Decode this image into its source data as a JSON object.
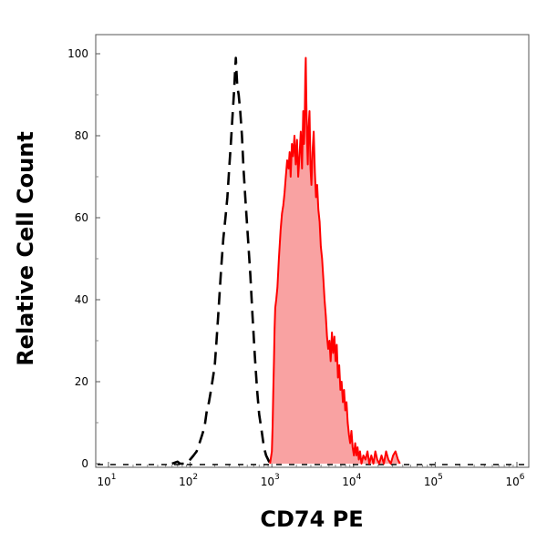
{
  "chart_data": {
    "type": "area",
    "title": "",
    "xlabel": "CD74 PE",
    "ylabel": "Relative Cell Count",
    "x_scale": "log",
    "xlim": [
      10,
      1000000
    ],
    "ylim": [
      0,
      100
    ],
    "x_ticks": [
      {
        "base": "10",
        "exp": "1"
      },
      {
        "base": "10",
        "exp": "2"
      },
      {
        "base": "10",
        "exp": "3"
      },
      {
        "base": "10",
        "exp": "4"
      },
      {
        "base": "10",
        "exp": "5"
      },
      {
        "base": "10",
        "exp": "6"
      }
    ],
    "y_ticks": [
      "0",
      "20",
      "40",
      "60",
      "80",
      "100"
    ],
    "grid": false,
    "legend": "none",
    "series": [
      {
        "style": "dashed",
        "color": "#000000",
        "filled": false,
        "points": [
          [
            60,
            0
          ],
          [
            70,
            0.5
          ],
          [
            75,
            0
          ],
          [
            90,
            0
          ],
          [
            100,
            1
          ],
          [
            110,
            2
          ],
          [
            120,
            3
          ],
          [
            130,
            5
          ],
          [
            140,
            7
          ],
          [
            150,
            9
          ],
          [
            160,
            13
          ],
          [
            170,
            15
          ],
          [
            180,
            18
          ],
          [
            190,
            21
          ],
          [
            200,
            24
          ],
          [
            210,
            30
          ],
          [
            220,
            36
          ],
          [
            230,
            42
          ],
          [
            240,
            48
          ],
          [
            255,
            55
          ],
          [
            270,
            60
          ],
          [
            285,
            65
          ],
          [
            300,
            72
          ],
          [
            315,
            78
          ],
          [
            330,
            85
          ],
          [
            345,
            91
          ],
          [
            355,
            96
          ],
          [
            362,
            99
          ],
          [
            368,
            96
          ],
          [
            378,
            92
          ],
          [
            392,
            90
          ],
          [
            410,
            86
          ],
          [
            430,
            80
          ],
          [
            450,
            72
          ],
          [
            480,
            63
          ],
          [
            510,
            55
          ],
          [
            545,
            46
          ],
          [
            580,
            36
          ],
          [
            620,
            26
          ],
          [
            660,
            18
          ],
          [
            700,
            12
          ],
          [
            750,
            8
          ],
          [
            800,
            4
          ],
          [
            850,
            2
          ],
          [
            900,
            1
          ],
          [
            950,
            0
          ]
        ]
      },
      {
        "style": "solid",
        "color": "#ff0000",
        "fill": "#f9a2a2",
        "filled": true,
        "points": [
          [
            950,
            0
          ],
          [
            1000,
            3
          ],
          [
            1020,
            9
          ],
          [
            1040,
            17
          ],
          [
            1060,
            25
          ],
          [
            1080,
            33
          ],
          [
            1100,
            38
          ],
          [
            1130,
            40
          ],
          [
            1170,
            43
          ],
          [
            1220,
            50
          ],
          [
            1280,
            57
          ],
          [
            1330,
            61
          ],
          [
            1380,
            63
          ],
          [
            1430,
            66
          ],
          [
            1480,
            70
          ],
          [
            1540,
            74
          ],
          [
            1600,
            72
          ],
          [
            1650,
            76
          ],
          [
            1700,
            70
          ],
          [
            1760,
            78
          ],
          [
            1820,
            75
          ],
          [
            1890,
            80
          ],
          [
            1960,
            73
          ],
          [
            2030,
            79
          ],
          [
            2100,
            70
          ],
          [
            2180,
            75
          ],
          [
            2260,
            81
          ],
          [
            2340,
            72
          ],
          [
            2420,
            86
          ],
          [
            2480,
            78
          ],
          [
            2530,
            85
          ],
          [
            2570,
            95
          ],
          [
            2600,
            99
          ],
          [
            2640,
            89
          ],
          [
            2690,
            80
          ],
          [
            2750,
            73
          ],
          [
            2820,
            82
          ],
          [
            2890,
            86
          ],
          [
            2970,
            72
          ],
          [
            3050,
            68
          ],
          [
            3150,
            76
          ],
          [
            3250,
            81
          ],
          [
            3360,
            71
          ],
          [
            3470,
            65
          ],
          [
            3590,
            68
          ],
          [
            3710,
            62
          ],
          [
            3840,
            59
          ],
          [
            3980,
            53
          ],
          [
            4120,
            50
          ],
          [
            4270,
            45
          ],
          [
            4420,
            40
          ],
          [
            4580,
            36
          ],
          [
            4740,
            31
          ],
          [
            4900,
            28
          ],
          [
            5070,
            30
          ],
          [
            5250,
            25
          ],
          [
            5440,
            32
          ],
          [
            5630,
            27
          ],
          [
            5830,
            31
          ],
          [
            6030,
            25
          ],
          [
            6240,
            29
          ],
          [
            6450,
            21
          ],
          [
            6680,
            24
          ],
          [
            6910,
            18
          ],
          [
            7150,
            20
          ],
          [
            7400,
            15
          ],
          [
            7650,
            18
          ],
          [
            7920,
            13
          ],
          [
            8200,
            15
          ],
          [
            8490,
            10
          ],
          [
            8790,
            7
          ],
          [
            9100,
            5
          ],
          [
            9420,
            8
          ],
          [
            9750,
            4
          ],
          [
            10100,
            2
          ],
          [
            10460,
            5
          ],
          [
            10830,
            2
          ],
          [
            11210,
            4
          ],
          [
            11600,
            1
          ],
          [
            12000,
            3
          ],
          [
            12500,
            0
          ],
          [
            13200,
            2
          ],
          [
            14000,
            1
          ],
          [
            14800,
            3
          ],
          [
            15600,
            0
          ],
          [
            16500,
            2
          ],
          [
            17500,
            0
          ],
          [
            18500,
            3
          ],
          [
            19500,
            1
          ],
          [
            20600,
            0
          ],
          [
            22000,
            2
          ],
          [
            23500,
            0
          ],
          [
            25000,
            3
          ],
          [
            26700,
            1
          ],
          [
            28500,
            0
          ],
          [
            30500,
            2
          ],
          [
            32600,
            3
          ],
          [
            35000,
            1
          ],
          [
            37000,
            0
          ]
        ]
      }
    ]
  }
}
